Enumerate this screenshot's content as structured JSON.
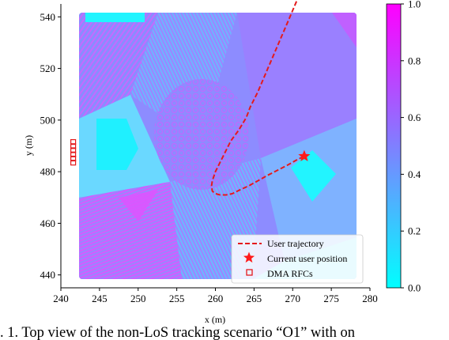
{
  "chart_data": {
    "type": "heatmap",
    "xlabel": "x (m)",
    "ylabel": "y (m)",
    "xlim": [
      240,
      280
    ],
    "ylim": [
      435,
      545
    ],
    "x_ticks": [
      "240",
      "245",
      "250",
      "255",
      "260",
      "265",
      "270",
      "275",
      "280"
    ],
    "y_ticks": [
      "440",
      "460",
      "480",
      "500",
      "520",
      "540"
    ],
    "colorbar": {
      "range": [
        0.0,
        1.0
      ],
      "ticks": [
        "0.0",
        "0.2",
        "0.4",
        "0.6",
        "0.8",
        "1.0"
      ],
      "colors": [
        "#00ffff",
        "#ff00ff"
      ]
    },
    "series": [
      {
        "name": "User trajectory",
        "style": "dashed red line",
        "x": [
          270.5,
          269.5,
          268.5,
          267.5,
          266.5,
          265.5,
          264.5,
          264.0,
          263.0,
          262.0,
          261.5,
          261.0,
          260.5,
          260.0,
          259.6,
          259.5,
          259.6,
          260.0,
          260.6,
          261.4,
          262.2,
          263.2,
          264.3,
          265.5,
          266.7,
          268.0,
          269.3,
          270.5,
          271.5
        ],
        "y": [
          546.0,
          539.0,
          532.0,
          525.0,
          518.0,
          511.0,
          505.0,
          501.0,
          496.0,
          492.0,
          489.0,
          486.0,
          483.0,
          480.0,
          476.5,
          474.5,
          472.5,
          471.5,
          471.0,
          471.0,
          471.5,
          473.0,
          474.5,
          476.5,
          478.5,
          480.5,
          482.5,
          484.5,
          486.0
        ]
      },
      {
        "name": "Current user position",
        "style": "red star",
        "x": [
          271.5
        ],
        "y": [
          486.0
        ]
      },
      {
        "name": "DMA RFCs",
        "style": "red squares",
        "x": [
          241.6,
          241.6,
          241.6,
          241.6,
          241.6,
          241.6
        ],
        "y": [
          483.5,
          485.1,
          486.7,
          488.3,
          489.9,
          491.5
        ]
      }
    ],
    "legend": {
      "position": "bottom-right",
      "entries": [
        "User trajectory",
        "Current user position",
        "DMA RFCs"
      ]
    }
  },
  "caption": ". 1.  Top view of the non-LoS tracking scenario “O1” with on",
  "colors": {
    "trajectory": "#e41a1c",
    "map_base": "#8c8cff"
  }
}
